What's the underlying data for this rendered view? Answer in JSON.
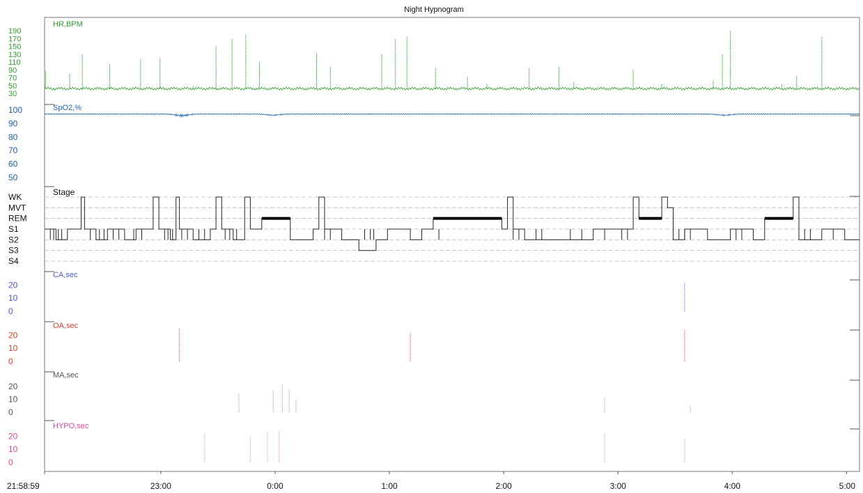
{
  "chart_data": {
    "type": "line",
    "title": "Night Hypnogram",
    "time_labels": [
      "21:58:59",
      "23:00",
      "0:00",
      "1:00",
      "2:00",
      "3:00",
      "4:00",
      "5:00"
    ],
    "time_ticks_hours": [
      0,
      1.0169,
      2.0169,
      3.0169,
      4.0169,
      5.0169,
      6.0169,
      7.0169
    ],
    "duration_hours": 7.13,
    "panels": [
      {
        "id": "hr",
        "label": "HR,BPM",
        "color": "#2e9c2e",
        "ylim": [
          30,
          190
        ],
        "tick_labels": [
          "190",
          "170",
          "150",
          "130",
          "110",
          "90",
          "70",
          "50",
          "30"
        ],
        "tick_values": [
          190,
          170,
          150,
          130,
          110,
          90,
          70,
          50,
          30
        ],
        "baseline": 42,
        "spikes": [
          [
            0.01,
            88
          ],
          [
            0.22,
            80
          ],
          [
            0.33,
            130
          ],
          [
            0.57,
            105
          ],
          [
            0.84,
            118
          ],
          [
            1.01,
            120
          ],
          [
            1.3,
            50
          ],
          [
            1.5,
            150
          ],
          [
            1.64,
            170
          ],
          [
            1.76,
            180
          ],
          [
            1.88,
            110
          ],
          [
            2.38,
            135
          ],
          [
            2.5,
            100
          ],
          [
            2.95,
            130
          ],
          [
            3.07,
            170
          ],
          [
            3.17,
            175
          ],
          [
            3.42,
            95
          ],
          [
            3.7,
            72
          ],
          [
            3.87,
            55
          ],
          [
            4.24,
            95
          ],
          [
            4.5,
            100
          ],
          [
            4.63,
            60
          ],
          [
            5.15,
            90
          ],
          [
            5.4,
            55
          ],
          [
            5.85,
            65
          ],
          [
            5.93,
            130
          ],
          [
            6.0,
            190
          ],
          [
            6.45,
            55
          ],
          [
            6.58,
            75
          ],
          [
            6.8,
            175
          ]
        ]
      },
      {
        "id": "spo2",
        "label": "SpO2,%",
        "color": "#1e5fb4",
        "ylim": [
          50,
          100
        ],
        "tick_labels": [
          "100",
          "90",
          "80",
          "70",
          "60",
          "50"
        ],
        "tick_values": [
          100,
          90,
          80,
          70,
          60,
          50
        ],
        "baseline": 97,
        "dips": [
          [
            1.2,
            95
          ],
          [
            2.0,
            95.5
          ],
          [
            5.95,
            95.5
          ]
        ]
      },
      {
        "id": "stage",
        "label": "Stage",
        "color": "#222222",
        "levels": [
          "WK",
          "MVT",
          "REM",
          "S1",
          "S2",
          "S3",
          "S4"
        ],
        "rem_periods": [
          [
            1.9,
            2.15
          ],
          [
            3.4,
            4.0
          ],
          [
            5.2,
            5.4
          ],
          [
            6.3,
            6.55
          ]
        ],
        "segments": [
          [
            0,
            3
          ],
          [
            0.1,
            4
          ],
          [
            0.2,
            3
          ],
          [
            0.32,
            0
          ],
          [
            0.35,
            3
          ],
          [
            0.45,
            4
          ],
          [
            0.55,
            3
          ],
          [
            0.7,
            4
          ],
          [
            0.8,
            3
          ],
          [
            0.95,
            0
          ],
          [
            1.0,
            3
          ],
          [
            1.1,
            4
          ],
          [
            1.15,
            0
          ],
          [
            1.18,
            3
          ],
          [
            1.3,
            4
          ],
          [
            1.45,
            3
          ],
          [
            1.5,
            0
          ],
          [
            1.55,
            3
          ],
          [
            1.65,
            4
          ],
          [
            1.75,
            0
          ],
          [
            1.8,
            3
          ],
          [
            1.9,
            2
          ],
          [
            2.15,
            4
          ],
          [
            2.35,
            3
          ],
          [
            2.4,
            0
          ],
          [
            2.45,
            3
          ],
          [
            2.6,
            4
          ],
          [
            2.75,
            5
          ],
          [
            2.9,
            4
          ],
          [
            3.0,
            3
          ],
          [
            3.2,
            4
          ],
          [
            3.3,
            3
          ],
          [
            3.4,
            2
          ],
          [
            4.0,
            3
          ],
          [
            4.05,
            0
          ],
          [
            4.1,
            3
          ],
          [
            4.2,
            4
          ],
          [
            4.5,
            4
          ],
          [
            4.8,
            3
          ],
          [
            5.0,
            3
          ],
          [
            5.15,
            0
          ],
          [
            5.2,
            2
          ],
          [
            5.4,
            0
          ],
          [
            5.45,
            1
          ],
          [
            5.5,
            4
          ],
          [
            5.6,
            3
          ],
          [
            5.8,
            4
          ],
          [
            6.0,
            3
          ],
          [
            6.2,
            4
          ],
          [
            6.3,
            2
          ],
          [
            6.55,
            0
          ],
          [
            6.6,
            4
          ],
          [
            6.8,
            3
          ],
          [
            7.0,
            4
          ]
        ],
        "flicker_x": [
          0.05,
          0.08,
          0.12,
          0.15,
          0.4,
          0.48,
          0.52,
          0.6,
          0.65,
          0.78,
          0.85,
          1.05,
          1.08,
          1.12,
          1.2,
          1.25,
          1.35,
          1.4,
          1.58,
          1.62,
          1.68,
          2.45,
          2.5,
          2.8,
          2.85,
          2.88,
          3.45,
          4.1,
          4.15,
          4.3,
          4.35,
          4.6,
          4.7,
          4.9,
          5.05,
          5.1,
          5.55,
          5.6,
          5.65,
          6.05,
          6.1,
          6.65,
          6.7,
          6.9
        ]
      },
      {
        "id": "ca",
        "label": "CA,sec",
        "color": "#4a58c8",
        "ylim": [
          0,
          25
        ],
        "tick_labels": [
          "20",
          "10",
          "0"
        ],
        "tick_values": [
          20,
          10,
          0
        ],
        "events": [
          [
            5.6,
            22
          ]
        ]
      },
      {
        "id": "oa",
        "label": "OA,sec",
        "color": "#e33b2a",
        "ylim": [
          0,
          25
        ],
        "tick_labels": [
          "20",
          "10",
          "0"
        ],
        "tick_values": [
          20,
          10,
          0
        ],
        "events": [
          [
            1.18,
            25
          ],
          [
            3.2,
            22
          ],
          [
            5.6,
            24
          ]
        ]
      },
      {
        "id": "ma",
        "label": "MA,sec",
        "color": "#555555",
        "ylim": [
          0,
          25
        ],
        "tick_labels": [
          "20",
          "10",
          "0"
        ],
        "tick_values": [
          20,
          10,
          0
        ],
        "events": [
          [
            1.7,
            15
          ],
          [
            2.0,
            17
          ],
          [
            2.08,
            22
          ],
          [
            2.14,
            18
          ],
          [
            2.2,
            10
          ],
          [
            4.9,
            12
          ],
          [
            5.65,
            5
          ]
        ]
      },
      {
        "id": "hypo",
        "label": "HYPO,sec",
        "color": "#e0479e",
        "ylim": [
          0,
          25
        ],
        "tick_labels": [
          "20",
          "10",
          "0"
        ],
        "tick_values": [
          20,
          10,
          0
        ],
        "events": [
          [
            1.4,
            22
          ],
          [
            1.8,
            20
          ],
          [
            1.95,
            24
          ],
          [
            2.05,
            24
          ],
          [
            4.9,
            22
          ],
          [
            5.6,
            18
          ]
        ]
      }
    ]
  }
}
